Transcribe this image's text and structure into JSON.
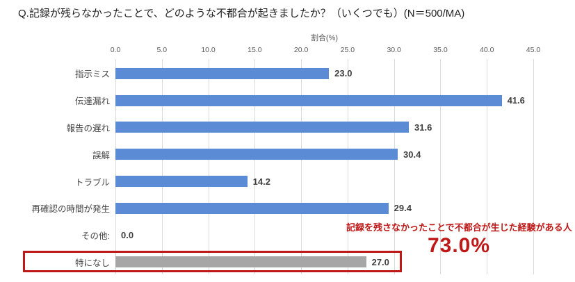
{
  "title": "Q.記録が残らなかったことで、どのような不都合が起きましたか？（いくつでも）(N＝500/MA)",
  "chart_data": {
    "type": "bar",
    "orientation": "horizontal",
    "xlabel": "割合(%)",
    "xlim": [
      0,
      45
    ],
    "xticks": [
      "0.0",
      "5.0",
      "10.0",
      "15.0",
      "20.0",
      "25.0",
      "30.0",
      "35.0",
      "40.0",
      "45.0"
    ],
    "categories": [
      "指示ミス",
      "伝達漏れ",
      "報告の遅れ",
      "誤解",
      "トラブル",
      "再確認の時間が発生",
      "その他:",
      "特になし"
    ],
    "values": [
      23.0,
      41.6,
      31.6,
      30.4,
      14.2,
      29.4,
      0.0,
      27.0
    ],
    "value_labels": [
      "23.0",
      "41.6",
      "31.6",
      "30.4",
      "14.2",
      "29.4",
      "0.0",
      "27.0"
    ],
    "highlight_index": 7,
    "grid": true,
    "legend_position": "none"
  },
  "annotation": {
    "line1": "記録を残さなかったことで不都合が生じた経験がある人",
    "line2": "73.0%"
  },
  "colors": {
    "bar_blue": "#5B8BD4",
    "bar_gray": "#A6A6A6",
    "accent_red": "#BE1818",
    "grid_line": "#DADADA",
    "value_text": "#3F3F3F",
    "axis_text": "#595959",
    "label_text": "#454545",
    "title_text": "#1F1F1F"
  }
}
